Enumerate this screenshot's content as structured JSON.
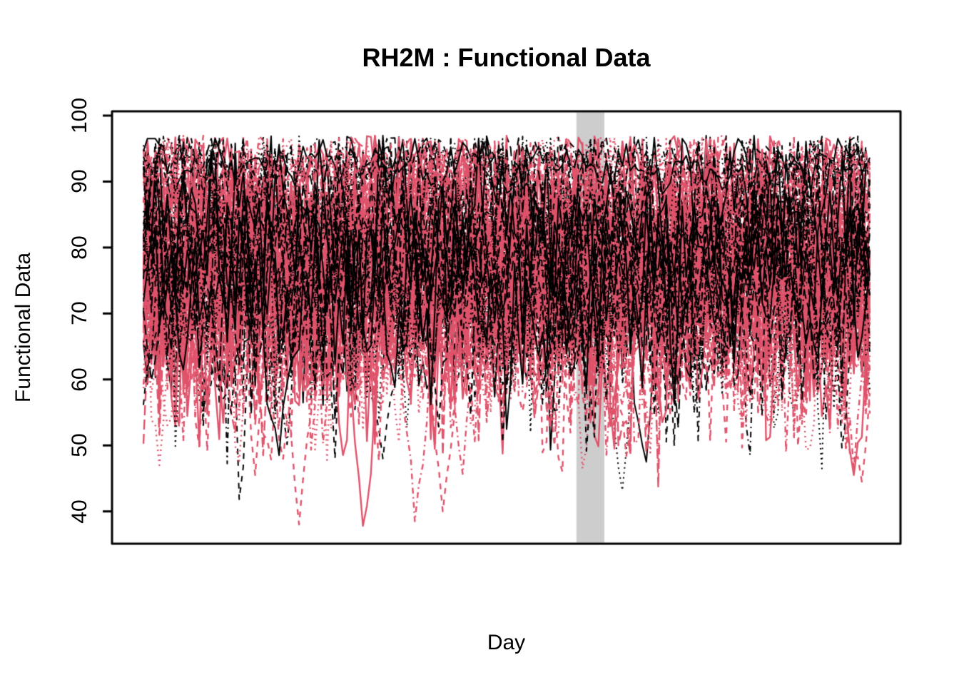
{
  "figure": {
    "background": "#FFFFFF",
    "box_color": "#000000"
  },
  "chart_data": {
    "type": "line",
    "title": "RH2M : Functional Data",
    "xlabel": "Day",
    "ylabel": "Functional Data",
    "x_domain_days": [
      1,
      365
    ],
    "ylim": [
      35.1,
      100.65
    ],
    "yticks": [
      40,
      50,
      60,
      70,
      80,
      90,
      100
    ],
    "xticks": "none",
    "grid": false,
    "legend": false,
    "highlight_band": {
      "day_start": 218,
      "day_end": 232,
      "color": "#CDCDCD"
    },
    "colors": {
      "black": "#000000",
      "pink": "#DF536B"
    },
    "linetypes": [
      "solid",
      "dashed",
      "dotted",
      "dotdash",
      "longdash"
    ],
    "value_envelope": {
      "typical_min": 48,
      "typical_max": 96,
      "extreme_min": 38,
      "extreme_max": 97
    },
    "render": {
      "seed": 7,
      "step_days": 2,
      "groups": [
        {
          "color": "#000000",
          "count": 32,
          "mean_lo": 71,
          "mean_hi": 84,
          "sig_lo": 5.5,
          "sig_hi": 8.5,
          "lwd": 2.0
        },
        {
          "color": "#DF536B",
          "count": 44,
          "mean_lo": 70,
          "mean_hi": 84,
          "sig_lo": 6.0,
          "sig_hi": 9.0,
          "lwd": 2.4
        }
      ],
      "high_series": [
        {
          "color": "#000000",
          "count": 3,
          "mean": 92.8,
          "sig": 1.6,
          "lwd": 2.0
        },
        {
          "color": "#DF536B",
          "count": 2,
          "mean": 91.5,
          "sig": 2.0,
          "lwd": 2.4
        }
      ],
      "revert": 0.5,
      "dip_prob": 0.015,
      "dip_lo": 6,
      "dip_hi": 22,
      "soft_floor": 50,
      "soft_ceil": 97,
      "feature_dips": [
        {
          "color": "#DF536B",
          "idx": 1,
          "day": 78,
          "min": 38.0
        },
        {
          "color": "#DF536B",
          "idx": 5,
          "day": 110,
          "min": 37.8
        },
        {
          "color": "#DF536B",
          "idx": 8,
          "day": 136,
          "min": 38.5
        },
        {
          "color": "#DF536B",
          "idx": 11,
          "day": 150,
          "min": 40.0
        },
        {
          "color": "#DF536B",
          "idx": 16,
          "day": 360,
          "min": 44.5
        },
        {
          "color": "#DF536B",
          "idx": 0,
          "day": 357,
          "min": 45.5
        },
        {
          "color": "#DF536B",
          "idx": 7,
          "day": 8,
          "min": 47.0
        },
        {
          "color": "#000000",
          "idx": 2,
          "day": 241,
          "min": 43.2
        },
        {
          "color": "#000000",
          "idx": 5,
          "day": 68,
          "min": 48.5
        },
        {
          "color": "#000000",
          "idx": 6,
          "day": 120,
          "min": 48.0
        },
        {
          "color": "#000000",
          "idx": 10,
          "day": 252,
          "min": 47.5
        }
      ]
    }
  }
}
